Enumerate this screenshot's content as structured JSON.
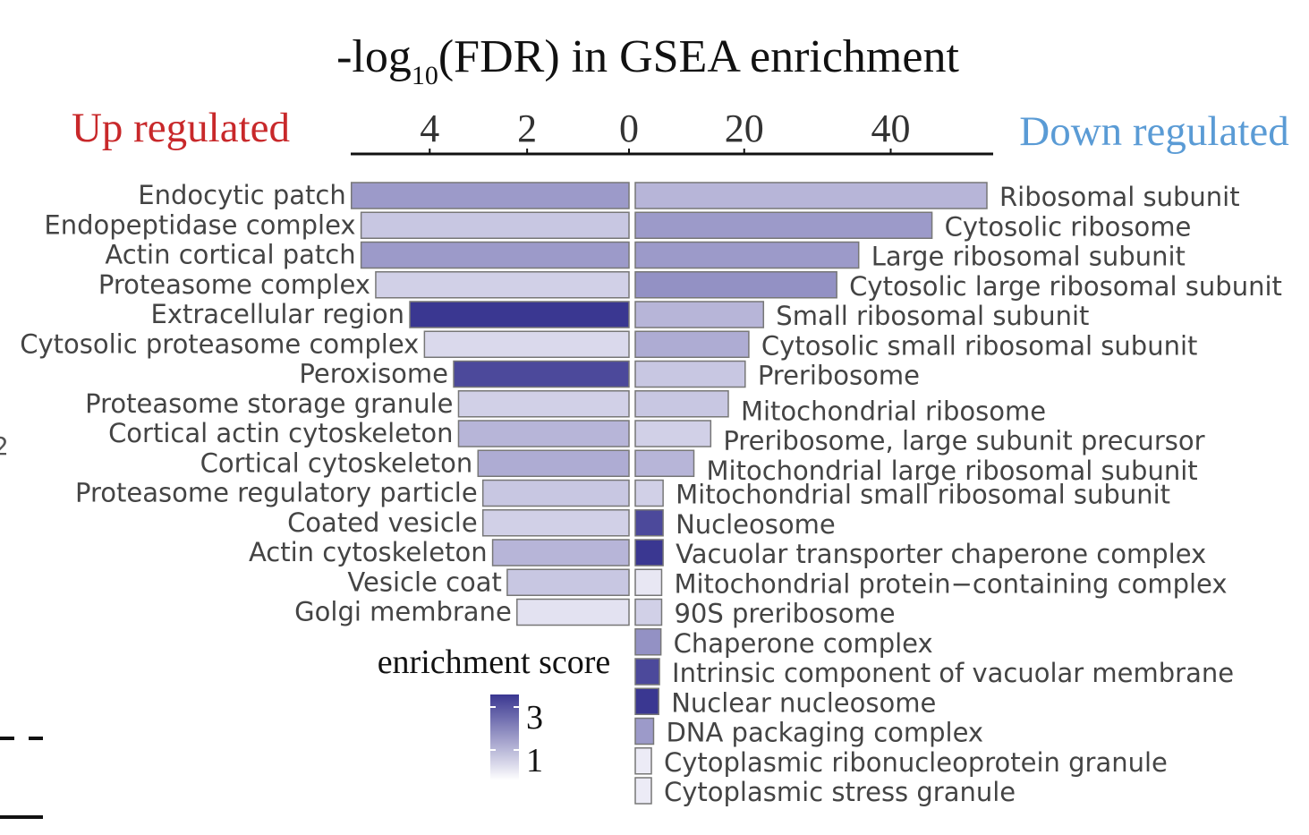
{
  "chart_data": {
    "type": "bar",
    "title_main": "-log",
    "title_sub": "10",
    "title_rest": "(FDR) in GSEA enrichment",
    "left_label": "Up regulated",
    "right_label": "Down regulated",
    "left_ticks": [
      "4",
      "2",
      "0"
    ],
    "right_ticks": [
      "20",
      "40"
    ],
    "left_tick_values": [
      4,
      2,
      0
    ],
    "right_tick_values": [
      20,
      40
    ],
    "colors": {
      "up_label": "#c8282a",
      "down_label": "#5a9bd5",
      "score_low": "#ecebf6",
      "score_high": "#3a3791"
    },
    "legend": {
      "title": "enrichment score",
      "high_label": "3",
      "low_label": "1",
      "min": 1,
      "max": 3
    },
    "up_series": {
      "name": "Up regulated",
      "xlim": [
        0,
        5.75
      ],
      "categories": [
        "Endocytic patch",
        "Endopeptidase complex",
        "Actin cortical patch",
        "Proteasome complex",
        "Extracellular region",
        "Cytosolic proteasome complex",
        "Peroxisome",
        "Proteasome storage granule",
        "Cortical actin cytoskeleton",
        "Cortical cytoskeleton",
        "Proteasome regulatory particle",
        "Coated vesicle",
        "Actin cytoskeleton",
        "Vesicle coat",
        "Golgi membrane"
      ],
      "values": [
        5.7,
        5.5,
        5.5,
        5.2,
        4.5,
        4.2,
        3.6,
        3.5,
        3.5,
        3.1,
        3.0,
        3.0,
        2.8,
        2.5,
        2.3
      ],
      "scores": [
        1.9,
        1.4,
        1.9,
        1.3,
        3.2,
        1.2,
        2.8,
        1.3,
        1.6,
        1.7,
        1.4,
        1.3,
        1.6,
        1.4,
        1.1
      ]
    },
    "down_series": {
      "name": "Down regulated",
      "xlim": [
        0,
        48
      ],
      "categories": [
        "Ribosomal subunit",
        "Cytosolic ribosome",
        "Large ribosomal subunit",
        "Cytosolic large ribosomal subunit",
        "Small ribosomal subunit",
        "Cytosolic small ribosomal subunit",
        "Preribosome",
        "Mitochondrial ribosome",
        "Preribosome, large subunit precursor",
        "Mitochondrial large ribosomal subunit",
        "Mitochondrial small ribosomal subunit",
        "Nucleosome",
        "Vacuolar transporter chaperone complex",
        "Mitochondrial protein−containing complex",
        "90S preribosome",
        "Chaperone complex",
        "Intrinsic component of vacuolar membrane",
        "Nuclear nucleosome",
        "DNA packaging complex",
        "Cytoplasmic ribonucleoprotein granule",
        "Cytoplasmic stress granule"
      ],
      "values": [
        48,
        40.5,
        30.5,
        27.5,
        17.5,
        15.5,
        15,
        12.7,
        10.3,
        8,
        3.8,
        3.8,
        3.8,
        3.6,
        3.6,
        3.5,
        3.3,
        3.2,
        2.5,
        2.2,
        2.2
      ],
      "scores": [
        1.6,
        1.9,
        1.9,
        2.0,
        1.6,
        1.7,
        1.4,
        1.4,
        1.3,
        1.6,
        1.3,
        2.8,
        3.2,
        1.05,
        1.3,
        2.0,
        2.8,
        3.0,
        1.9,
        1.0,
        1.0
      ],
      "label_rows": [
        0,
        1,
        2,
        3,
        4,
        5,
        6,
        7.2,
        8.2,
        9.2,
        10,
        11,
        12,
        13,
        14,
        15,
        16,
        17,
        18,
        19,
        20
      ]
    },
    "left_margin_text": [
      "2"
    ]
  }
}
